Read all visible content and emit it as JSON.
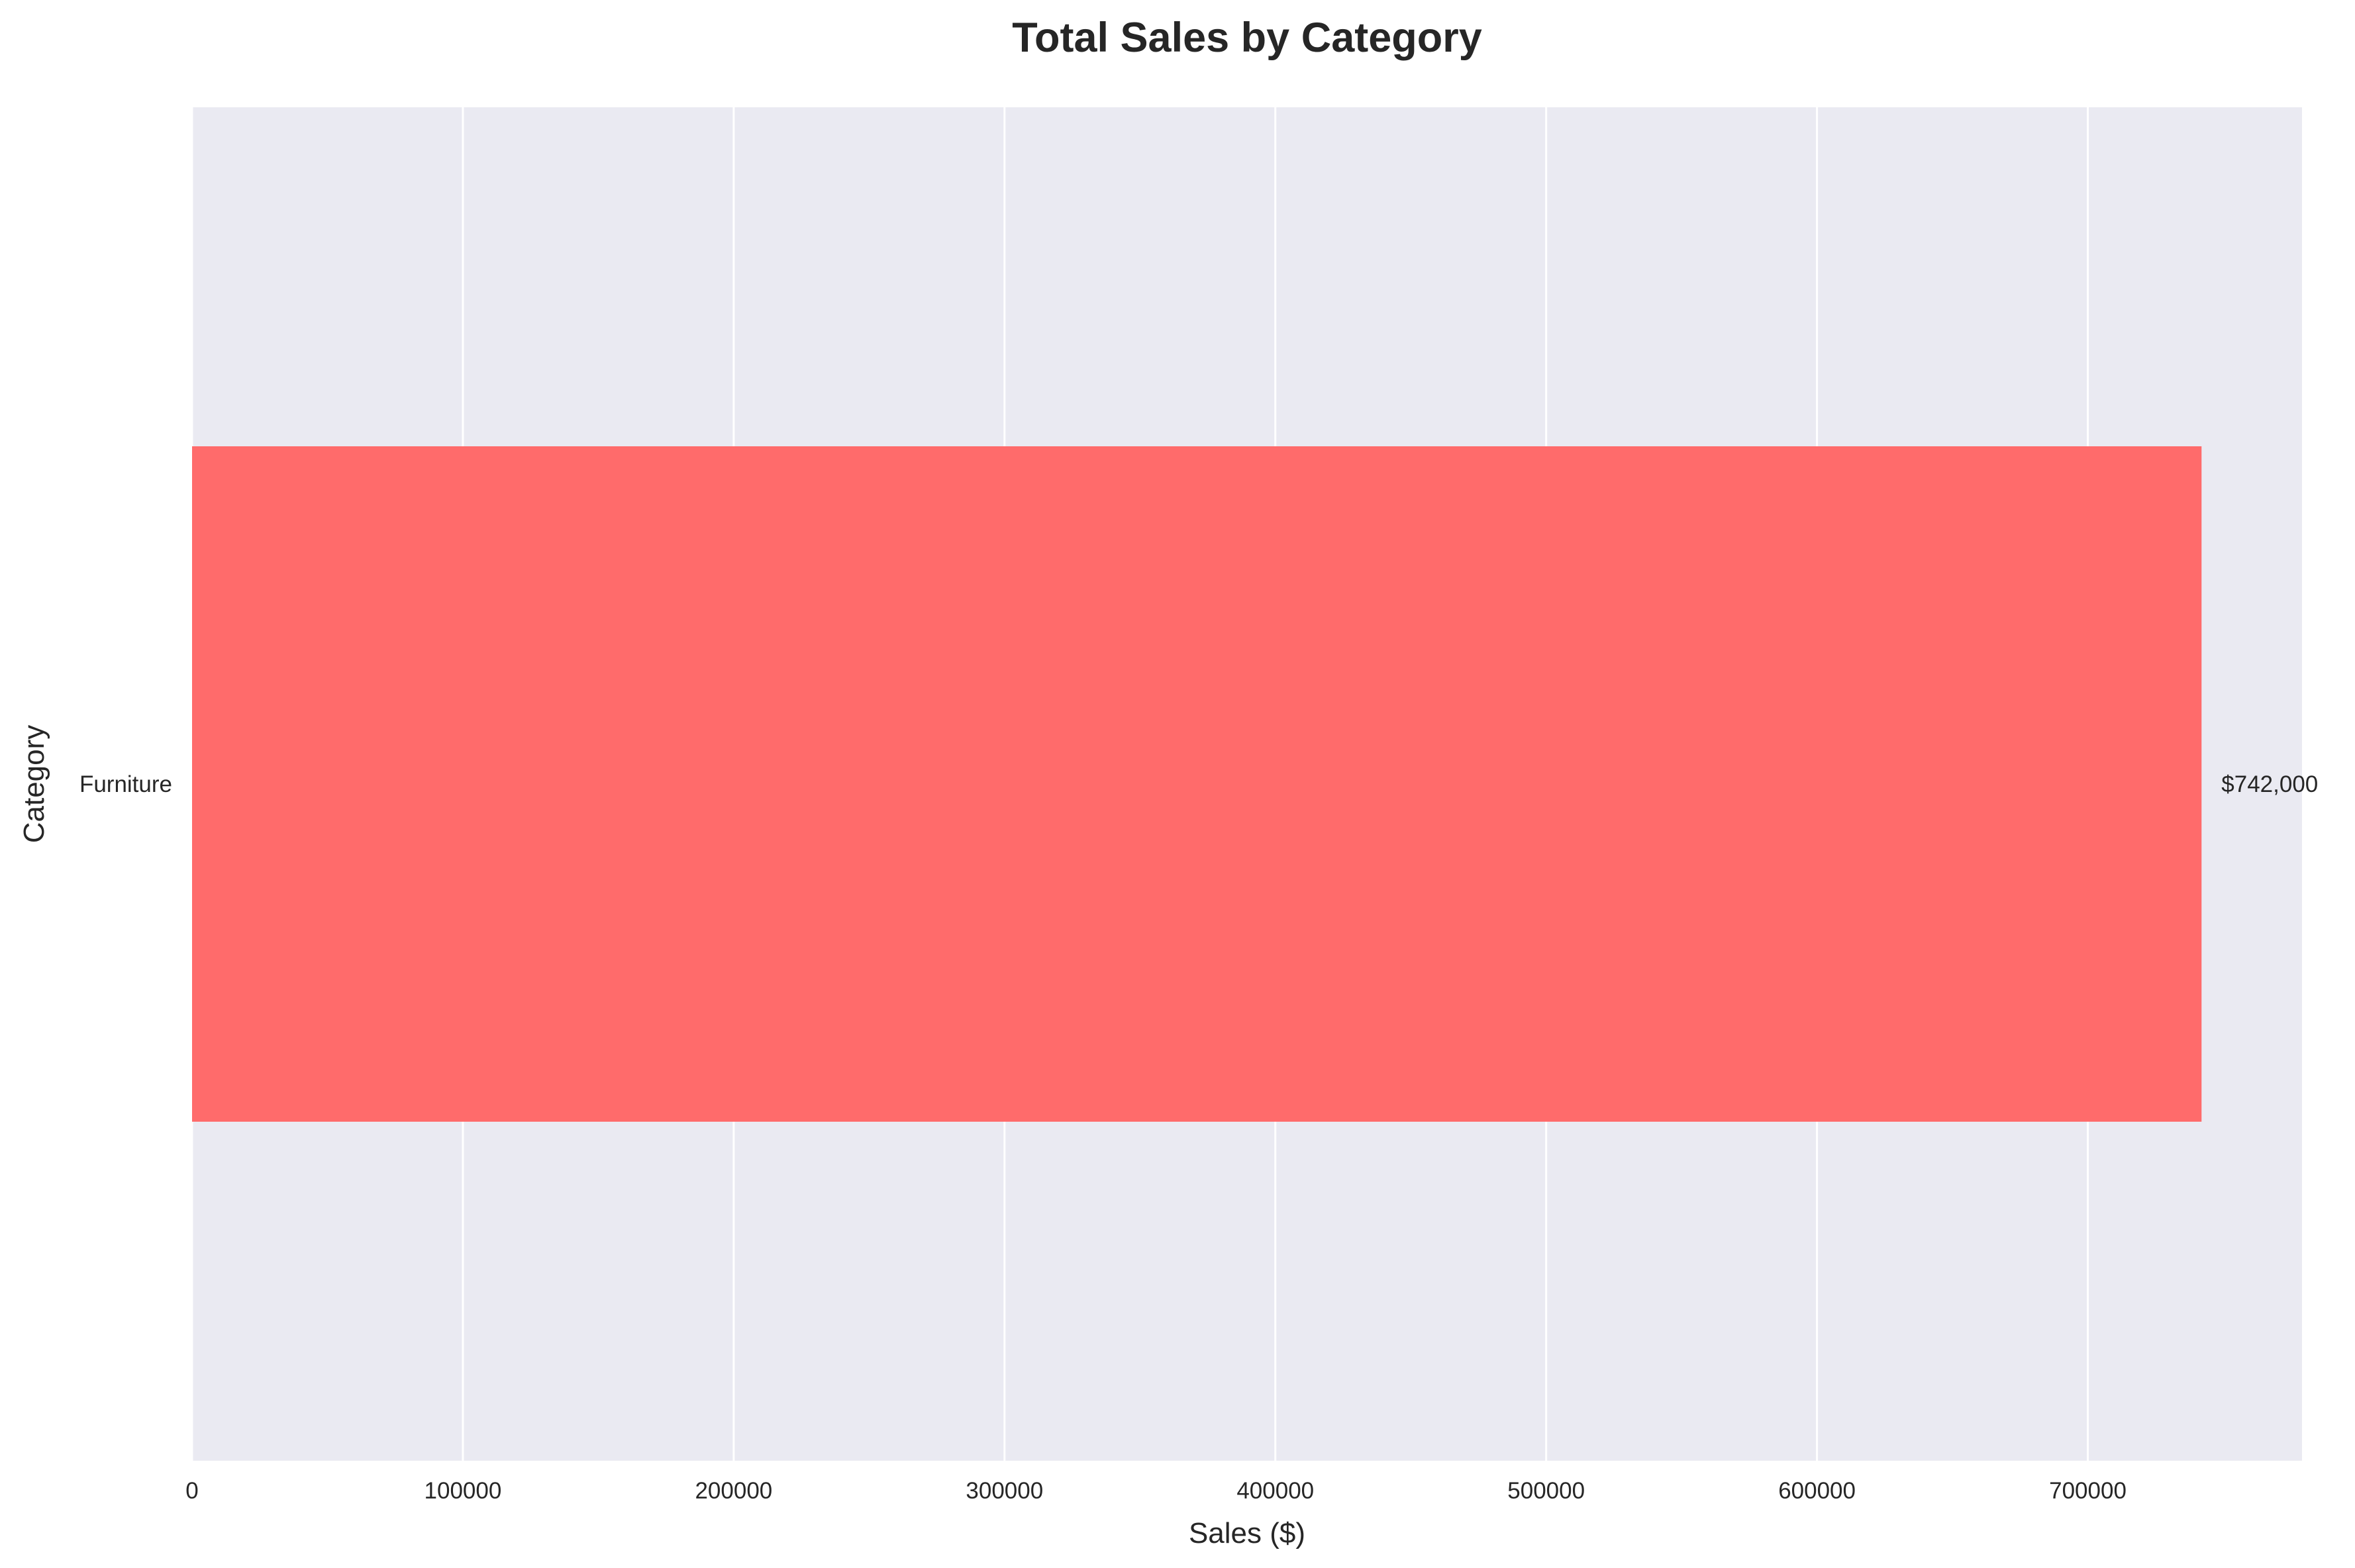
{
  "chart_data": {
    "type": "bar",
    "orientation": "horizontal",
    "title": "Total Sales by Category",
    "xlabel": "Sales ($)",
    "ylabel": "Category",
    "categories": [
      "Furniture"
    ],
    "values": [
      742000
    ],
    "data_labels": [
      "$742,000"
    ],
    "xlim": [
      0,
      779100
    ],
    "xticks": [
      0,
      100000,
      200000,
      300000,
      400000,
      500000,
      600000,
      700000
    ],
    "xtick_labels": [
      "0",
      "100000",
      "200000",
      "300000",
      "400000",
      "500000",
      "600000",
      "700000"
    ],
    "grid": true,
    "colors": {
      "bar": "#FF6B6B",
      "plot_background": "#EAEAF2",
      "grid": "#FFFFFF",
      "text": "#262626"
    }
  }
}
